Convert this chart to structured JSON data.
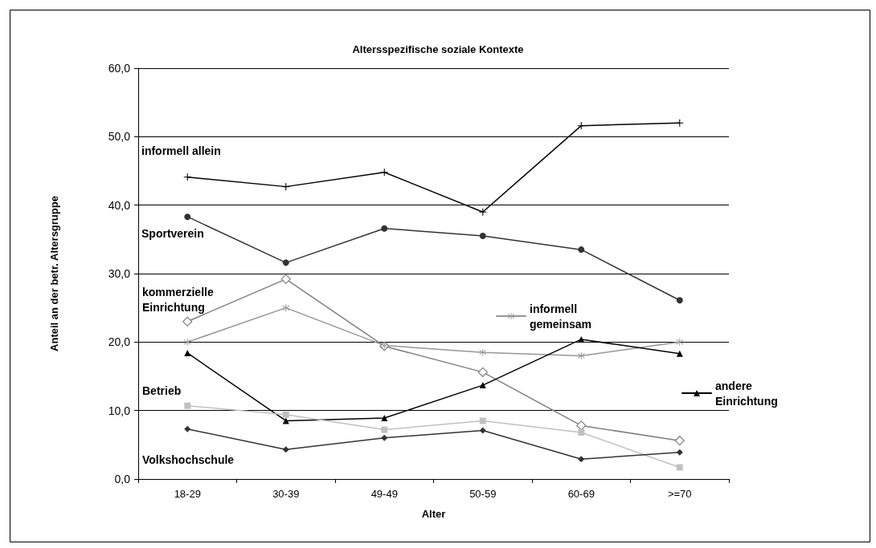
{
  "chart_data": {
    "type": "line",
    "title": "Altersspezifische soziale Kontexte",
    "xlabel": "Alter",
    "ylabel": "Anteil an der betr. Altersgruppe",
    "categories": [
      "18-29",
      "30-39",
      "49-49",
      "50-59",
      "60-69",
      ">=70"
    ],
    "series": [
      {
        "name": "informell allein",
        "color": "#000000",
        "marker": "cross",
        "values": [
          44.1,
          42.7,
          44.8,
          39.0,
          51.6,
          52.0
        ]
      },
      {
        "name": "Sportverein",
        "color": "#333333",
        "marker": "circle",
        "values": [
          38.3,
          31.6,
          36.6,
          35.5,
          33.5,
          26.1
        ]
      },
      {
        "name": "kommerzielle Einrichtung",
        "color": "#808080",
        "marker": "diamond",
        "values": [
          23.0,
          29.2,
          19.4,
          15.6,
          7.8,
          5.6
        ]
      },
      {
        "name": "informell gemeinsam",
        "color": "#969696",
        "marker": "star",
        "values": [
          20.0,
          25.0,
          19.5,
          18.5,
          18.0,
          20.0
        ]
      },
      {
        "name": "andere Einrichtung",
        "color": "#000000",
        "marker": "triangle",
        "values": [
          18.4,
          8.5,
          8.9,
          13.7,
          20.4,
          18.3
        ]
      },
      {
        "name": "Betrieb",
        "color": "#c0c0c0",
        "marker": "square",
        "values": [
          10.7,
          9.4,
          7.2,
          8.5,
          6.8,
          1.7
        ]
      },
      {
        "name": "Volkshochschule",
        "color": "#333333",
        "marker": "diamond",
        "values": [
          7.3,
          4.3,
          6.0,
          7.1,
          2.9,
          3.9
        ]
      }
    ],
    "ylim": [
      0,
      60
    ],
    "yticks": [
      {
        "value": 0,
        "label": "0,0"
      },
      {
        "value": 10,
        "label": "10,0"
      },
      {
        "value": 20,
        "label": "20,0"
      },
      {
        "value": 30,
        "label": "30,0"
      },
      {
        "value": 40,
        "label": "40,0"
      },
      {
        "value": 50,
        "label": "50,0"
      },
      {
        "value": 60,
        "label": "60,0"
      }
    ],
    "grid": "y",
    "legend": "right",
    "line_style": "solid"
  }
}
